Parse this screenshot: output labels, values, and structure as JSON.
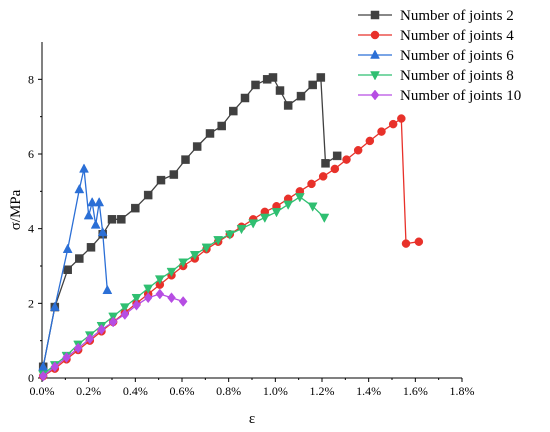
{
  "chart_data": {
    "type": "line",
    "title": "",
    "xlabel": "ε",
    "ylabel": "σ/MPa",
    "xlim": [
      0,
      1.8
    ],
    "ylim": [
      0,
      9
    ],
    "x_ticks": [
      "0.0%",
      "0.2%",
      "0.4%",
      "0.6%",
      "0.8%",
      "1.0%",
      "1.2%",
      "1.4%",
      "1.6%",
      "1.8%"
    ],
    "y_ticks": [
      "0",
      "2",
      "4",
      "6",
      "8"
    ],
    "legend_position": "top-right",
    "series": [
      {
        "name": "Number of joints 2",
        "color": "#404040",
        "marker": "square",
        "points": [
          [
            0.005,
            0.3
          ],
          [
            0.055,
            1.9
          ],
          [
            0.11,
            2.9
          ],
          [
            0.16,
            3.2
          ],
          [
            0.21,
            3.5
          ],
          [
            0.26,
            3.85
          ],
          [
            0.3,
            4.25
          ],
          [
            0.34,
            4.25
          ],
          [
            0.4,
            4.55
          ],
          [
            0.455,
            4.9
          ],
          [
            0.51,
            5.3
          ],
          [
            0.565,
            5.45
          ],
          [
            0.615,
            5.85
          ],
          [
            0.665,
            6.2
          ],
          [
            0.72,
            6.55
          ],
          [
            0.77,
            6.75
          ],
          [
            0.82,
            7.15
          ],
          [
            0.87,
            7.5
          ],
          [
            0.915,
            7.85
          ],
          [
            0.965,
            8.0
          ],
          [
            0.99,
            8.05
          ],
          [
            1.02,
            7.7
          ],
          [
            1.055,
            7.3
          ],
          [
            1.11,
            7.55
          ],
          [
            1.16,
            7.85
          ],
          [
            1.195,
            8.05
          ],
          [
            1.215,
            5.75
          ],
          [
            1.265,
            5.95
          ]
        ]
      },
      {
        "name": "Number of joints 4",
        "color": "#e8312a",
        "marker": "circle",
        "points": [
          [
            0.005,
            0.05
          ],
          [
            0.055,
            0.25
          ],
          [
            0.105,
            0.5
          ],
          [
            0.155,
            0.75
          ],
          [
            0.205,
            1.0
          ],
          [
            0.255,
            1.25
          ],
          [
            0.305,
            1.5
          ],
          [
            0.355,
            1.75
          ],
          [
            0.405,
            2.0
          ],
          [
            0.455,
            2.25
          ],
          [
            0.505,
            2.5
          ],
          [
            0.555,
            2.75
          ],
          [
            0.605,
            3.0
          ],
          [
            0.655,
            3.2
          ],
          [
            0.705,
            3.45
          ],
          [
            0.755,
            3.65
          ],
          [
            0.805,
            3.85
          ],
          [
            0.855,
            4.05
          ],
          [
            0.905,
            4.25
          ],
          [
            0.955,
            4.45
          ],
          [
            1.005,
            4.6
          ],
          [
            1.055,
            4.8
          ],
          [
            1.105,
            5.0
          ],
          [
            1.155,
            5.2
          ],
          [
            1.205,
            5.4
          ],
          [
            1.255,
            5.6
          ],
          [
            1.305,
            5.85
          ],
          [
            1.355,
            6.1
          ],
          [
            1.405,
            6.35
          ],
          [
            1.455,
            6.6
          ],
          [
            1.505,
            6.8
          ],
          [
            1.54,
            6.95
          ],
          [
            1.56,
            3.6
          ],
          [
            1.615,
            3.65
          ]
        ]
      },
      {
        "name": "Number of joints 6",
        "color": "#2b6fd6",
        "marker": "triangle-up",
        "points": [
          [
            0.005,
            0.3
          ],
          [
            0.055,
            1.9
          ],
          [
            0.11,
            3.45
          ],
          [
            0.16,
            5.05
          ],
          [
            0.18,
            5.6
          ],
          [
            0.2,
            4.35
          ],
          [
            0.215,
            4.7
          ],
          [
            0.23,
            4.1
          ],
          [
            0.245,
            4.7
          ],
          [
            0.26,
            3.9
          ],
          [
            0.28,
            2.35
          ]
        ]
      },
      {
        "name": "Number of joints 8",
        "color": "#2fbf71",
        "marker": "triangle-down",
        "points": [
          [
            0.005,
            0.1
          ],
          [
            0.055,
            0.35
          ],
          [
            0.105,
            0.6
          ],
          [
            0.155,
            0.9
          ],
          [
            0.205,
            1.15
          ],
          [
            0.255,
            1.4
          ],
          [
            0.305,
            1.65
          ],
          [
            0.355,
            1.9
          ],
          [
            0.405,
            2.15
          ],
          [
            0.455,
            2.4
          ],
          [
            0.505,
            2.65
          ],
          [
            0.555,
            2.85
          ],
          [
            0.605,
            3.1
          ],
          [
            0.655,
            3.3
          ],
          [
            0.705,
            3.5
          ],
          [
            0.755,
            3.7
          ],
          [
            0.805,
            3.85
          ],
          [
            0.855,
            4.0
          ],
          [
            0.905,
            4.15
          ],
          [
            0.955,
            4.3
          ],
          [
            1.005,
            4.45
          ],
          [
            1.055,
            4.65
          ],
          [
            1.105,
            4.85
          ],
          [
            1.16,
            4.6
          ],
          [
            1.21,
            4.3
          ]
        ]
      },
      {
        "name": "Number of joints 10",
        "color": "#b64de3",
        "marker": "diamond",
        "points": [
          [
            0.005,
            0.05
          ],
          [
            0.055,
            0.3
          ],
          [
            0.105,
            0.55
          ],
          [
            0.155,
            0.8
          ],
          [
            0.205,
            1.05
          ],
          [
            0.255,
            1.3
          ],
          [
            0.305,
            1.5
          ],
          [
            0.355,
            1.7
          ],
          [
            0.405,
            1.95
          ],
          [
            0.455,
            2.15
          ],
          [
            0.505,
            2.25
          ],
          [
            0.555,
            2.15
          ],
          [
            0.605,
            2.05
          ]
        ]
      }
    ]
  }
}
